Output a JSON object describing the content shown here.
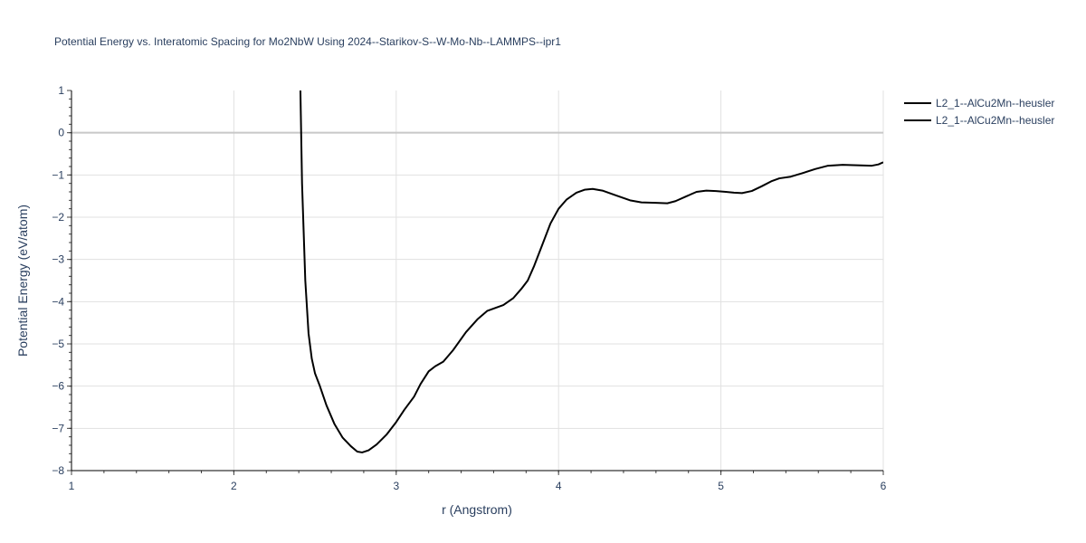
{
  "chart_data": {
    "type": "line",
    "title": "Potential Energy vs. Interatomic Spacing for Mo2NbW Using 2024--Starikov-S--W-Mo-Nb--LAMMPS--ipr1",
    "xlabel": "r (Angstrom)",
    "ylabel": "Potential Energy (eV/atom)",
    "xlim": [
      1,
      6
    ],
    "ylim": [
      -8,
      1
    ],
    "xticks": [
      "1",
      "2",
      "3",
      "4",
      "5",
      "6"
    ],
    "yticks": [
      "1",
      "0",
      "−1",
      "−2",
      "−3",
      "−4",
      "−5",
      "−6",
      "−7",
      "−8"
    ],
    "grid": true,
    "legend_position": "top-right",
    "series": [
      {
        "name": "L2_1--AlCu2Mn--heusler",
        "color": "#000000",
        "points": [
          [
            2.41,
            1.0
          ],
          [
            2.42,
            -1.2
          ],
          [
            2.44,
            -3.5
          ],
          [
            2.46,
            -4.75
          ],
          [
            2.48,
            -5.35
          ],
          [
            2.5,
            -5.7
          ],
          [
            2.53,
            -6.0
          ],
          [
            2.57,
            -6.45
          ],
          [
            2.62,
            -6.9
          ],
          [
            2.67,
            -7.22
          ],
          [
            2.72,
            -7.42
          ],
          [
            2.76,
            -7.55
          ],
          [
            2.79,
            -7.57
          ],
          [
            2.83,
            -7.52
          ],
          [
            2.88,
            -7.38
          ],
          [
            2.94,
            -7.15
          ],
          [
            3.0,
            -6.85
          ],
          [
            3.05,
            -6.56
          ],
          [
            3.11,
            -6.25
          ],
          [
            3.15,
            -5.95
          ],
          [
            3.2,
            -5.65
          ],
          [
            3.24,
            -5.53
          ],
          [
            3.29,
            -5.42
          ],
          [
            3.35,
            -5.15
          ],
          [
            3.43,
            -4.72
          ],
          [
            3.5,
            -4.42
          ],
          [
            3.56,
            -4.22
          ],
          [
            3.61,
            -4.15
          ],
          [
            3.66,
            -4.08
          ],
          [
            3.72,
            -3.92
          ],
          [
            3.77,
            -3.7
          ],
          [
            3.81,
            -3.5
          ],
          [
            3.85,
            -3.15
          ],
          [
            3.9,
            -2.65
          ],
          [
            3.95,
            -2.15
          ],
          [
            4.0,
            -1.8
          ],
          [
            4.05,
            -1.58
          ],
          [
            4.11,
            -1.42
          ],
          [
            4.16,
            -1.35
          ],
          [
            4.21,
            -1.33
          ],
          [
            4.27,
            -1.37
          ],
          [
            4.35,
            -1.48
          ],
          [
            4.44,
            -1.6
          ],
          [
            4.51,
            -1.65
          ],
          [
            4.6,
            -1.66
          ],
          [
            4.67,
            -1.67
          ],
          [
            4.72,
            -1.62
          ],
          [
            4.79,
            -1.5
          ],
          [
            4.85,
            -1.4
          ],
          [
            4.91,
            -1.37
          ],
          [
            4.97,
            -1.38
          ],
          [
            5.03,
            -1.4
          ],
          [
            5.08,
            -1.42
          ],
          [
            5.13,
            -1.43
          ],
          [
            5.19,
            -1.38
          ],
          [
            5.25,
            -1.27
          ],
          [
            5.31,
            -1.15
          ],
          [
            5.36,
            -1.08
          ],
          [
            5.43,
            -1.04
          ],
          [
            5.5,
            -0.96
          ],
          [
            5.58,
            -0.86
          ],
          [
            5.66,
            -0.78
          ],
          [
            5.75,
            -0.76
          ],
          [
            5.84,
            -0.77
          ],
          [
            5.93,
            -0.78
          ],
          [
            5.97,
            -0.75
          ],
          [
            6.0,
            -0.7
          ]
        ]
      },
      {
        "name": "L2_1--AlCu2Mn--heusler",
        "color": "#000000",
        "points": []
      }
    ]
  }
}
